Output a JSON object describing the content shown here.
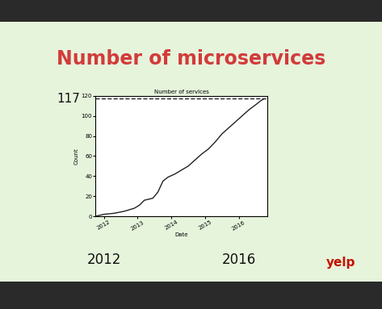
{
  "chart_data": {
    "type": "line",
    "title": "Number of microservices",
    "subtitle": "Number of services",
    "x_label": "Date",
    "y_label": "Count",
    "x": [
      2011.75,
      2012.0,
      2012.3,
      2012.6,
      2012.9,
      2013.05,
      2013.2,
      2013.45,
      2013.6,
      2013.75,
      2013.9,
      2014.1,
      2014.3,
      2014.5,
      2014.7,
      2014.9,
      2015.1,
      2015.3,
      2015.5,
      2015.7,
      2015.9,
      2016.1,
      2016.3,
      2016.5,
      2016.65,
      2016.75
    ],
    "values": [
      0,
      2,
      3,
      5,
      8,
      11,
      16,
      18,
      24,
      35,
      39,
      42,
      46,
      50,
      56,
      62,
      67,
      74,
      82,
      88,
      94,
      100,
      106,
      111,
      115,
      117
    ],
    "color": "#222222",
    "xlim": [
      2011.75,
      2016.85
    ],
    "xticks": [
      2012,
      2013,
      2014,
      2015,
      2016
    ],
    "ylim": [
      0,
      120
    ],
    "yticks": [
      0,
      20,
      40,
      60,
      80,
      100,
      120
    ],
    "grid": false,
    "reference_line": {
      "value": 117,
      "label": "117"
    },
    "annotations": [
      {
        "text": "2012",
        "x": 2012
      },
      {
        "text": "2016",
        "x": 2016
      }
    ],
    "logo": "yelp"
  }
}
